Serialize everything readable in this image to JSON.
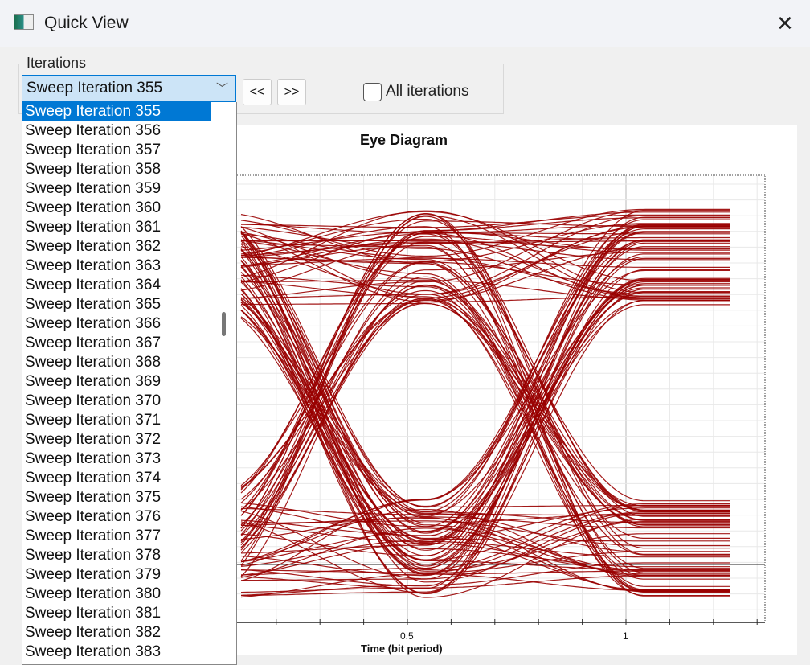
{
  "window": {
    "title": "Quick View",
    "close_icon": "close-icon",
    "app_icon": "quickview-app-icon"
  },
  "iterations": {
    "group_label": "Iterations",
    "selected": "Sweep Iteration 355",
    "prev_label": "<<",
    "next_label": ">>",
    "all_iterations_label": "All iterations",
    "all_iterations_checked": false,
    "options": [
      "Sweep Iteration 355",
      "Sweep Iteration 356",
      "Sweep Iteration 357",
      "Sweep Iteration 358",
      "Sweep Iteration 359",
      "Sweep Iteration 360",
      "Sweep Iteration 361",
      "Sweep Iteration 362",
      "Sweep Iteration 363",
      "Sweep Iteration 364",
      "Sweep Iteration 365",
      "Sweep Iteration 366",
      "Sweep Iteration 367",
      "Sweep Iteration 368",
      "Sweep Iteration 369",
      "Sweep Iteration 370",
      "Sweep Iteration 371",
      "Sweep Iteration 372",
      "Sweep Iteration 373",
      "Sweep Iteration 374",
      "Sweep Iteration 375",
      "Sweep Iteration 376",
      "Sweep Iteration 377",
      "Sweep Iteration 378",
      "Sweep Iteration 379",
      "Sweep Iteration 380",
      "Sweep Iteration 381",
      "Sweep Iteration 382",
      "Sweep Iteration 383"
    ]
  },
  "chart_data": {
    "type": "line",
    "title": "Eye Diagram",
    "xlabel": "Time (bit period)",
    "x_ticks": [
      "0.5",
      "1"
    ],
    "grid": true,
    "trace_color": "#990000"
  }
}
